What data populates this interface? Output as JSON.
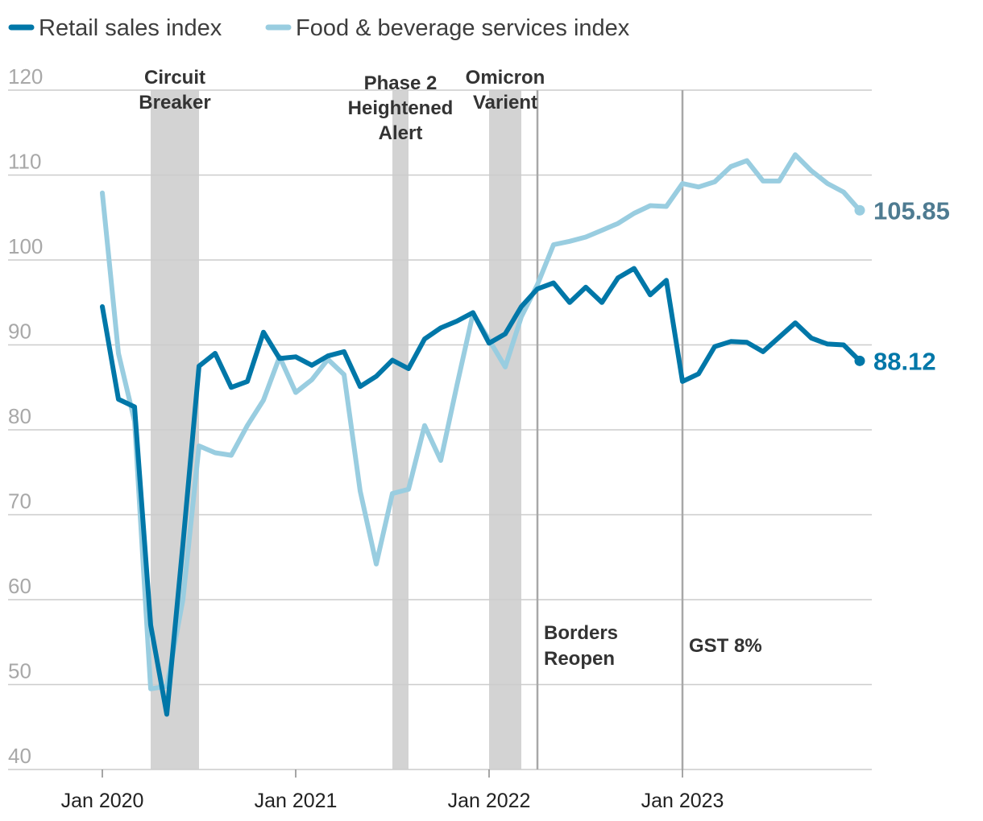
{
  "chart_data": {
    "type": "line",
    "title": "",
    "xlabel": "",
    "ylabel": "",
    "ylim": [
      40,
      120
    ],
    "yticks": [
      40,
      50,
      60,
      70,
      80,
      90,
      100,
      110,
      120
    ],
    "xtick_labels": [
      "Jan 2020",
      "Jan 2021",
      "Jan 2022",
      "Jan 2023"
    ],
    "x_months": [
      "2020-01",
      "2020-02",
      "2020-03",
      "2020-04",
      "2020-05",
      "2020-06",
      "2020-07",
      "2020-08",
      "2020-09",
      "2020-10",
      "2020-11",
      "2020-12",
      "2021-01",
      "2021-02",
      "2021-03",
      "2021-04",
      "2021-05",
      "2021-06",
      "2021-07",
      "2021-08",
      "2021-09",
      "2021-10",
      "2021-11",
      "2021-12",
      "2022-01",
      "2022-02",
      "2022-03",
      "2022-04",
      "2022-05",
      "2022-06",
      "2022-07",
      "2022-08",
      "2022-09",
      "2022-10",
      "2022-11",
      "2022-12",
      "2023-01",
      "2023-02",
      "2023-03",
      "2023-04",
      "2023-05",
      "2023-06",
      "2023-07",
      "2023-08",
      "2023-09",
      "2023-10",
      "2023-11",
      "2023-12"
    ],
    "series": [
      {
        "name": "Retail sales index",
        "color": "#0077a8",
        "end_label": "88.12",
        "values": [
          94.5,
          83.6,
          82.7,
          57.0,
          46.5,
          66.5,
          87.5,
          89.0,
          85.0,
          85.7,
          91.5,
          88.4,
          88.6,
          87.6,
          88.7,
          89.2,
          85.1,
          86.3,
          88.2,
          87.2,
          90.7,
          92.0,
          92.8,
          93.8,
          90.2,
          91.3,
          94.5,
          96.6,
          97.3,
          95.0,
          96.8,
          95.0,
          97.9,
          99.0,
          95.9,
          97.6,
          85.7,
          86.6,
          89.8,
          90.4,
          90.3,
          89.2,
          90.9,
          92.6,
          90.8,
          90.1,
          90.0,
          88.12
        ]
      },
      {
        "name": "Food & beverage services index",
        "color": "#99cde0",
        "end_label": "105.85",
        "values": [
          107.9,
          89.0,
          81.0,
          49.5,
          49.8,
          60.0,
          78.1,
          77.3,
          77.0,
          80.5,
          83.5,
          88.6,
          84.4,
          85.9,
          88.3,
          86.5,
          72.8,
          64.2,
          72.5,
          73.0,
          80.5,
          76.4,
          85.2,
          93.7,
          90.6,
          87.4,
          93.3,
          97.1,
          101.8,
          102.2,
          102.7,
          103.5,
          104.3,
          105.5,
          106.4,
          106.3,
          109.0,
          108.6,
          109.2,
          111.0,
          111.7,
          109.3,
          109.3,
          112.4,
          110.5,
          109.0,
          108.0,
          105.85
        ]
      }
    ],
    "shaded_periods": [
      {
        "label": [
          "Circuit",
          "Breaker"
        ],
        "start_month": 3,
        "end_month": 6
      },
      {
        "label": [
          "Phase 2",
          "Heightened",
          "Alert"
        ],
        "start_month": 18,
        "end_month": 19
      },
      {
        "label": [
          "Omicron",
          "Varient"
        ],
        "start_month": 24,
        "end_month": 26
      }
    ],
    "vertical_events": [
      {
        "label": [
          "Borders",
          "Reopen"
        ],
        "month": 27
      },
      {
        "label": [
          "GST 8%"
        ],
        "month": 36
      }
    ],
    "legend_position": "top-left"
  },
  "colors": {
    "shade": "#d3d3d3",
    "grid": "#cccccc",
    "event_line": "#a8a8a8",
    "retail_label": "#0077a8",
    "fnb_label": "#4e7b91"
  }
}
